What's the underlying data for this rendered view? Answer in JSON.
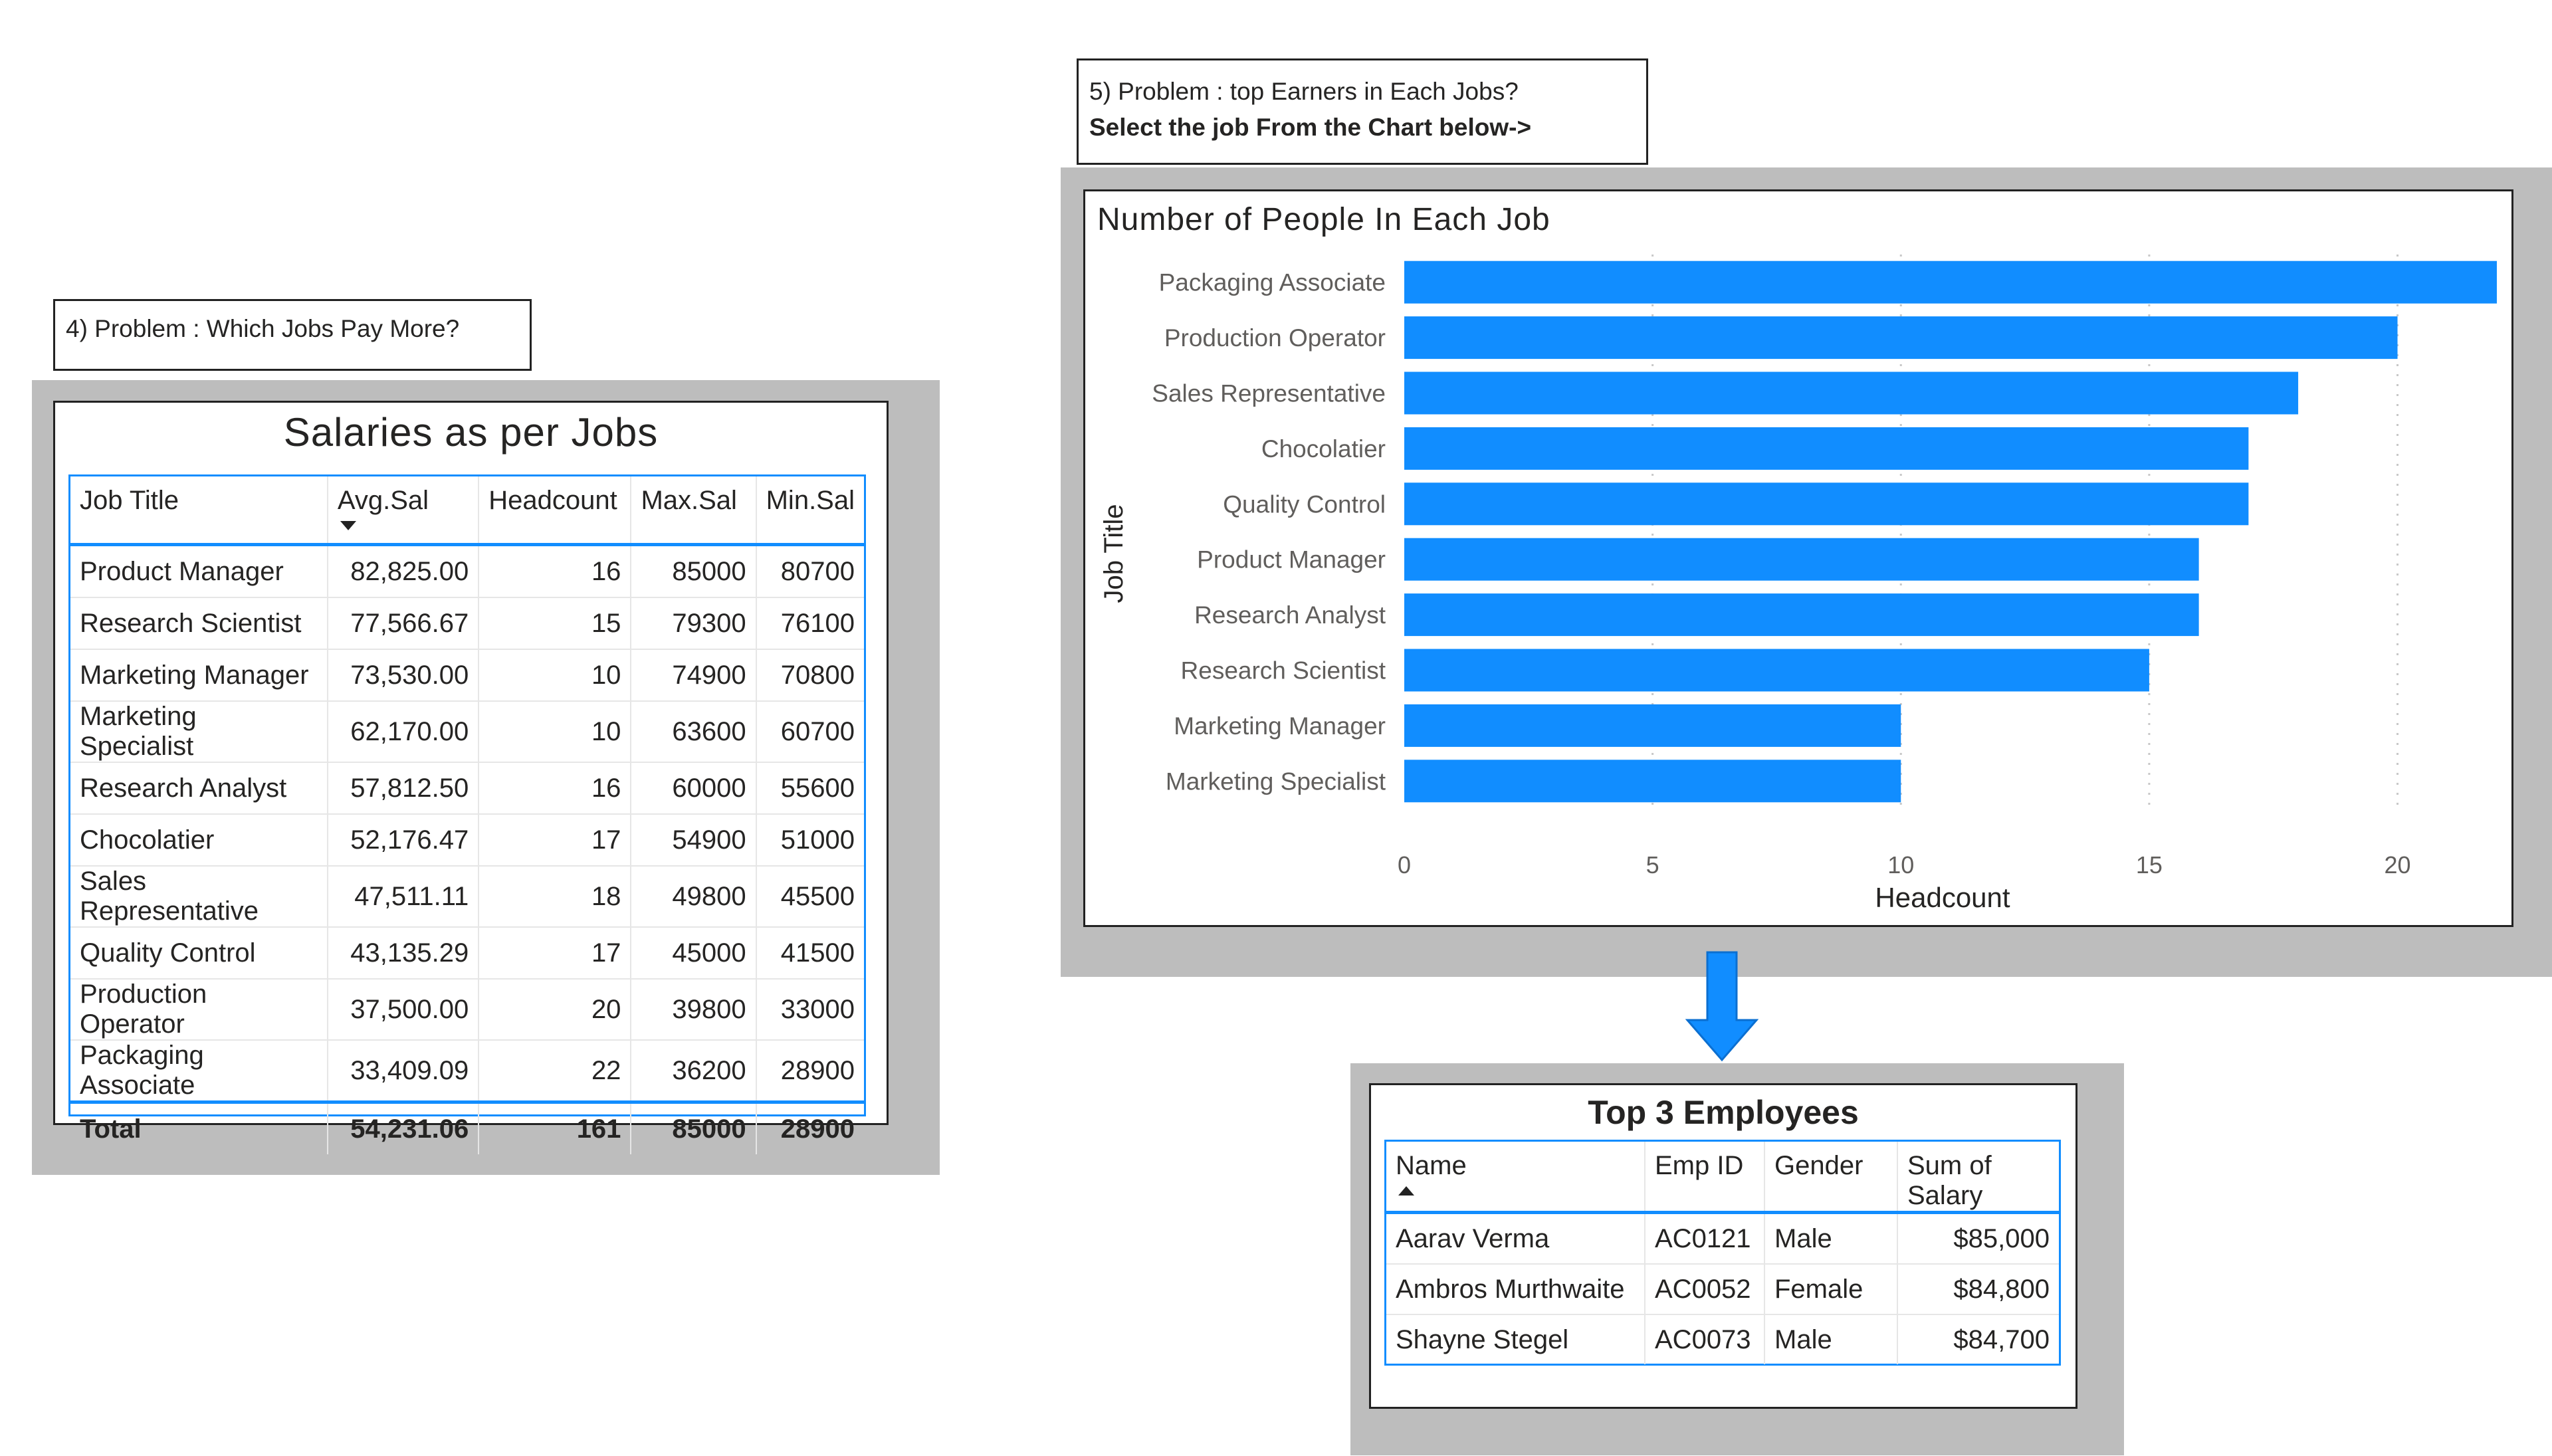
{
  "problem4": {
    "text": "4) Problem : Which Jobs Pay More?"
  },
  "problem5": {
    "line1": "5) Problem : top Earners in Each Jobs?",
    "line2": "Select the job From the Chart below->"
  },
  "salary_table": {
    "title": "Salaries as per Jobs",
    "columns": [
      "Job Title",
      "Avg.Sal",
      "Headcount",
      "Max.Sal",
      "Min.Sal"
    ],
    "rows": [
      [
        "Product Manager",
        "82,825.00",
        "16",
        "85000",
        "80700"
      ],
      [
        "Research Scientist",
        "77,566.67",
        "15",
        "79300",
        "76100"
      ],
      [
        "Marketing Manager",
        "73,530.00",
        "10",
        "74900",
        "70800"
      ],
      [
        "Marketing Specialist",
        "62,170.00",
        "10",
        "63600",
        "60700"
      ],
      [
        "Research Analyst",
        "57,812.50",
        "16",
        "60000",
        "55600"
      ],
      [
        "Chocolatier",
        "52,176.47",
        "17",
        "54900",
        "51000"
      ],
      [
        "Sales Representative",
        "47,511.11",
        "18",
        "49800",
        "45500"
      ],
      [
        "Quality Control",
        "43,135.29",
        "17",
        "45000",
        "41500"
      ],
      [
        "Production Operator",
        "37,500.00",
        "20",
        "39800",
        "33000"
      ],
      [
        "Packaging Associate",
        "33,409.09",
        "22",
        "36200",
        "28900"
      ]
    ],
    "total": [
      "Total",
      "54,231.06",
      "161",
      "85000",
      "28900"
    ]
  },
  "chart_data": {
    "type": "bar",
    "orientation": "horizontal",
    "title": "Number of People In Each Job",
    "xlabel": "Headcount",
    "ylabel": "Job Title",
    "categories": [
      "Packaging Associate",
      "Production Operator",
      "Sales Representative",
      "Chocolatier",
      "Quality Control",
      "Product Manager",
      "Research Analyst",
      "Research Scientist",
      "Marketing Manager",
      "Marketing Specialist"
    ],
    "values": [
      22,
      20,
      18,
      17,
      17,
      16,
      16,
      15,
      10,
      10
    ],
    "xlim": [
      0,
      22
    ],
    "xticks": [
      0,
      5,
      10,
      15,
      20
    ],
    "grid": true,
    "color": "#118dff"
  },
  "employees_table": {
    "title": "Top 3 Employees",
    "columns": [
      "Name",
      "Emp ID",
      "Gender",
      "Sum of Salary"
    ],
    "rows": [
      [
        "Aarav Verma",
        "AC0121",
        "Male",
        "$85,000"
      ],
      [
        "Ambros Murthwaite",
        "AC0052",
        "Female",
        "$84,800"
      ],
      [
        "Shayne Stegel",
        "AC0073",
        "Male",
        "$84,700"
      ]
    ]
  },
  "colors": {
    "accent": "#118dff",
    "panel_bg": "#bdbdbd",
    "arrow": "#118dff"
  }
}
